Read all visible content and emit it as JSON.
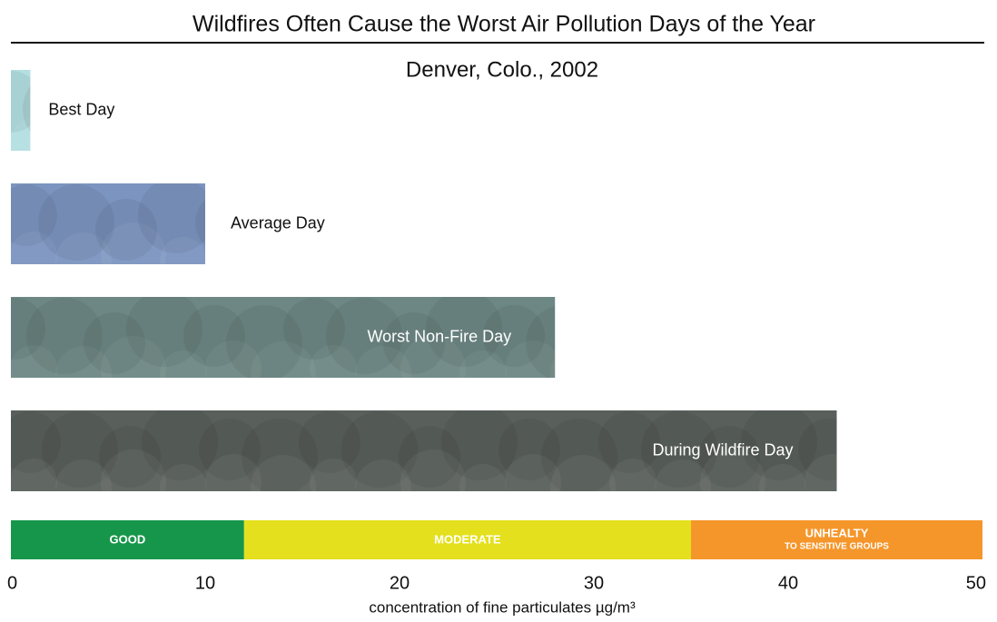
{
  "chart_data": {
    "type": "bar",
    "orientation": "horizontal",
    "title": "Wildfires Often Cause the Worst Air Pollution Days of the Year",
    "subtitle": "Denver, Colo., 2002",
    "categories": [
      "Best Day",
      "Average Day",
      "Worst Non-Fire Day",
      "During Wildfire Day"
    ],
    "values": [
      1,
      10,
      28,
      42.5
    ],
    "colors": [
      "#b3dfe1",
      "#7c95c0",
      "#6d8784",
      "#595f5b"
    ],
    "xlim": [
      0,
      50
    ],
    "xticks": [
      0,
      10,
      20,
      30,
      40,
      50
    ],
    "xlabel": "concentration of fine particulates µg/m³",
    "bands": [
      {
        "label": "GOOD",
        "from": 0,
        "to": 12,
        "color": "#16964a"
      },
      {
        "label": "MODERATE",
        "from": 12,
        "to": 35,
        "color": "#e4e01d"
      },
      {
        "label": "UNHEALTY",
        "sublabel": "TO SENSITIVE GROUPS",
        "from": 35,
        "to": 50,
        "color": "#f5962a"
      }
    ]
  }
}
